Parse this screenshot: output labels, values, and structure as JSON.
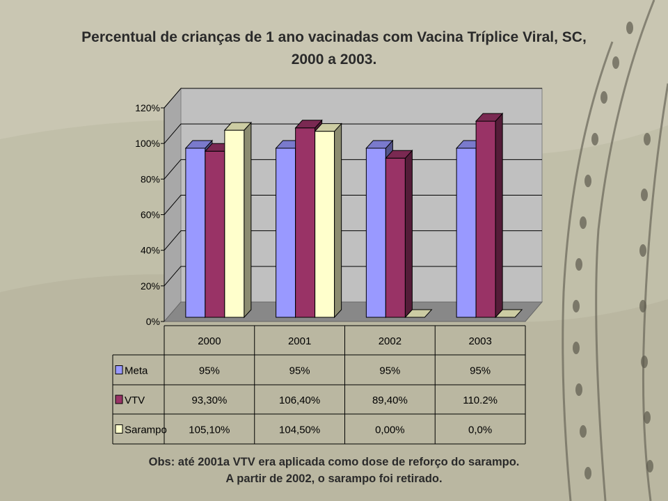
{
  "title_line1": "Percentual de crianças de 1 ano vacinadas com Vacina Tríplice Viral, SC,",
  "title_line2": "2000 a 2003.",
  "note_line1": "Obs: até 2001a VTV era aplicada como dose de reforço do sarampo.",
  "note_line2": "A partir de 2002, o sarampo foi retirado.",
  "chart_data": {
    "type": "bar",
    "categories": [
      "2000",
      "2001",
      "2002",
      "2003"
    ],
    "y_ticks": [
      "0%",
      "20%",
      "40%",
      "60%",
      "80%",
      "100%",
      "120%"
    ],
    "ylim": [
      0,
      120
    ],
    "grid": true,
    "legend": "data-table",
    "series": [
      {
        "name": "Meta",
        "color": "#9999ff",
        "values": [
          95,
          95,
          95,
          95
        ],
        "labels": [
          "95%",
          "95%",
          "95%",
          "95%"
        ]
      },
      {
        "name": "VTV",
        "color": "#993366",
        "values": [
          93.3,
          106.4,
          89.4,
          110.2
        ],
        "labels": [
          "93,30%",
          "106,40%",
          "89,40%",
          "110.2%"
        ]
      },
      {
        "name": "Sarampo",
        "color": "#ffffcc",
        "values": [
          105.1,
          104.5,
          0,
          0
        ],
        "labels": [
          "105,10%",
          "104,50%",
          "0,00%",
          "0,0%"
        ]
      }
    ]
  }
}
